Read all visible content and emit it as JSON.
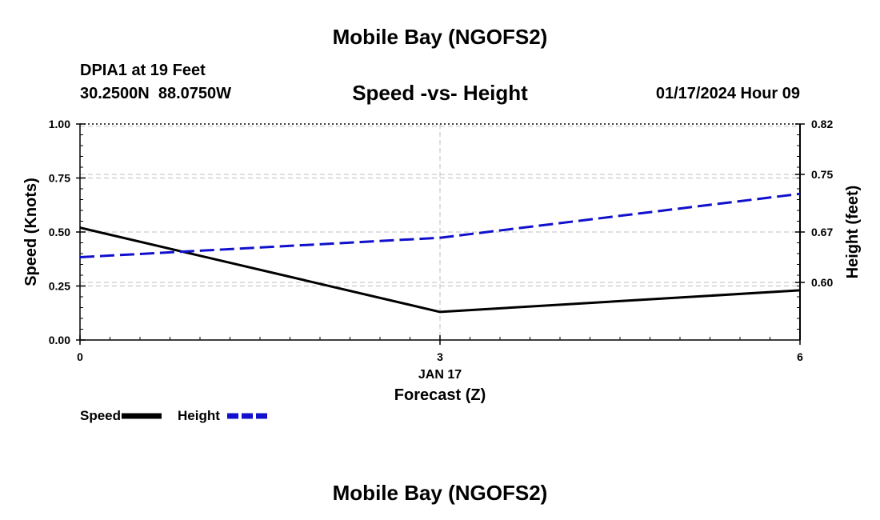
{
  "page": {
    "header_title": "Mobile Bay (NGOFS2)",
    "footer_title": "Mobile Bay (NGOFS2)",
    "station": "DPIA1 at 19 Feet",
    "coords": "30.2500N  88.0750W",
    "datetime": "01/17/2024 Hour 09"
  },
  "chart_data": {
    "type": "line",
    "title": "Speed -vs- Height",
    "xlabel": "Forecast (Z)",
    "x_date_label": "JAN 17",
    "ylabel": "Speed (Knots)",
    "y2label": "Height (feet)",
    "x": [
      0,
      3,
      6
    ],
    "xlim": [
      0,
      6
    ],
    "x_ticks": [
      "0",
      "3",
      "6"
    ],
    "ylim": [
      0,
      1
    ],
    "y_ticks": [
      "0.00",
      "0.25",
      "0.50",
      "0.75",
      "1.00"
    ],
    "y2lim": [
      0.52,
      0.82
    ],
    "y2_ticks": [
      "0.60",
      "0.67",
      "0.75",
      "0.82"
    ],
    "series": [
      {
        "name": "Speed",
        "axis": "left",
        "color": "#000000",
        "style": "solid",
        "values": [
          0.52,
          0.13,
          0.23
        ]
      },
      {
        "name": "Height",
        "axis": "right",
        "color": "#1010cc",
        "style": "dashed",
        "values": [
          0.635,
          0.662,
          0.723
        ]
      }
    ],
    "legend": [
      {
        "label": "Speed",
        "color": "#000000",
        "style": "solid"
      },
      {
        "label": "Height",
        "color": "#1010cc",
        "style": "dashed"
      }
    ]
  }
}
